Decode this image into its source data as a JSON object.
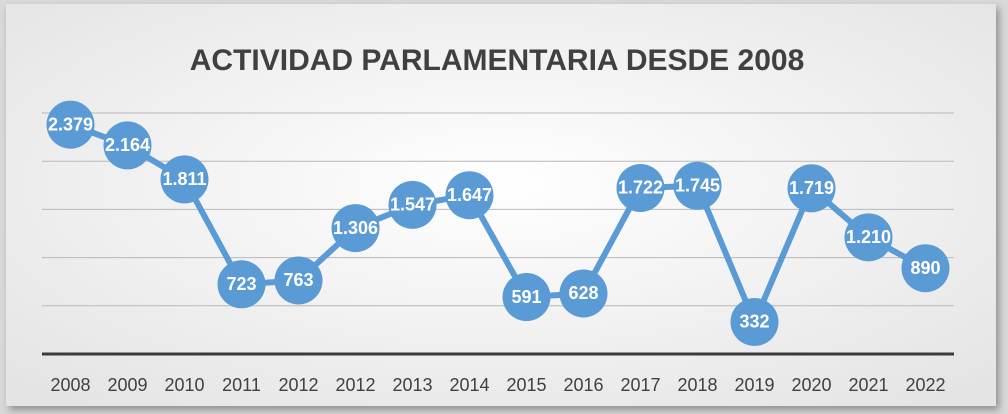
{
  "chart_data": {
    "type": "line",
    "title": "ACTIVIDAD PARLAMENTARIA DESDE 2008",
    "categories": [
      "2008",
      "2009",
      "2010",
      "2011",
      "2012",
      "2012",
      "2013",
      "2014",
      "2015",
      "2016",
      "2017",
      "2018",
      "2019",
      "2020",
      "2021",
      "2022"
    ],
    "values": [
      2379,
      2164,
      1811,
      723,
      763,
      1306,
      1547,
      1647,
      591,
      628,
      1722,
      1745,
      332,
      1719,
      1210,
      890
    ],
    "value_labels": [
      "2.379",
      "2.164",
      "1.811",
      "723",
      "763",
      "1.306",
      "1.547",
      "1.647",
      "591",
      "628",
      "1.722",
      "1.745",
      "332",
      "1.719",
      "1.210",
      "890"
    ],
    "color": "#5b9bd5",
    "ylim": [
      0,
      2500
    ],
    "yticks": [
      0,
      500,
      1000,
      1500,
      2000,
      2500
    ],
    "grid": true
  }
}
